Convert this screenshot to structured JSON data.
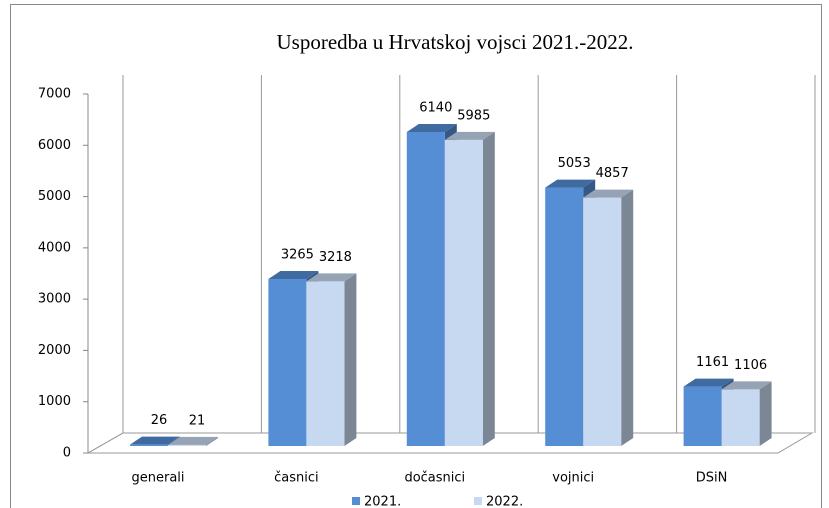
{
  "chart_data": {
    "type": "bar3d",
    "title": "Usporedba u Hrvatskoj vojsci 2021.-2022.",
    "categories": [
      "generali",
      "časnici",
      "dočasnici",
      "vojnici",
      "DSiN"
    ],
    "series": [
      {
        "name": "2021.",
        "color": "#558ed5",
        "values": [
          26,
          3265,
          6140,
          5053,
          1161
        ]
      },
      {
        "name": "2022.",
        "color": "#c6d9f1",
        "values": [
          21,
          3218,
          5985,
          4857,
          1106
        ]
      }
    ],
    "ylim": [
      0,
      7000
    ],
    "yticks": [
      0,
      1000,
      2000,
      3000,
      4000,
      5000,
      6000,
      7000
    ],
    "legend": "bottom"
  }
}
